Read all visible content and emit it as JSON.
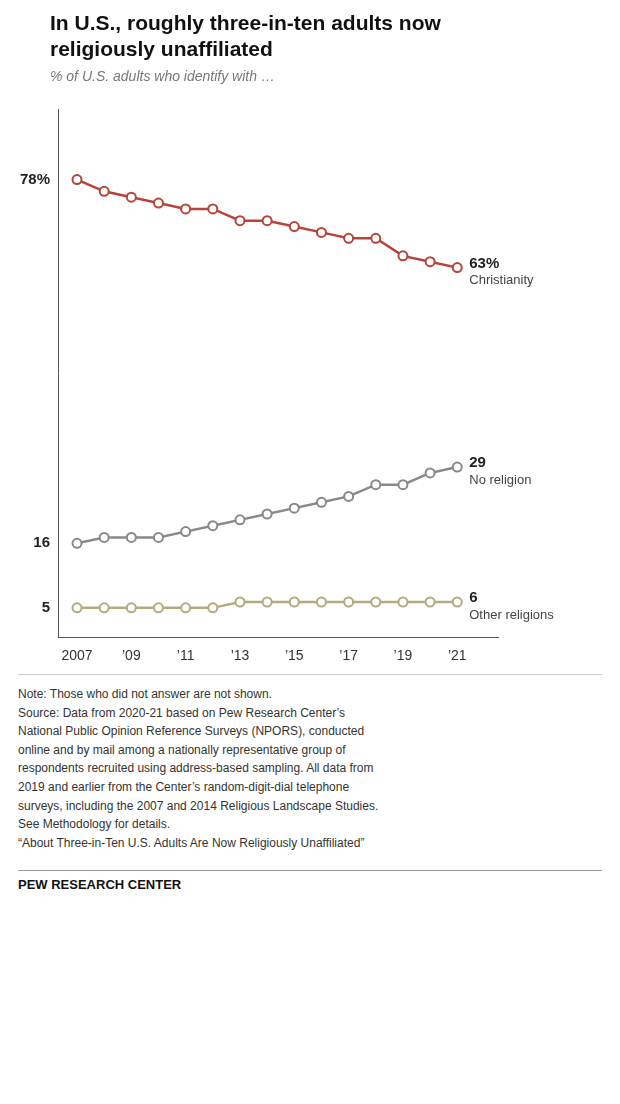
{
  "chart_data": {
    "type": "line",
    "title": [
      "In U.S., roughly three-in-ten adults now",
      "religiously unaffiliated"
    ],
    "subtitle": "% of U.S. adults who identify with …",
    "x": [
      2007,
      2008,
      2009,
      2010,
      2011,
      2012,
      2013,
      2014,
      2015,
      2016,
      2017,
      2018,
      2019,
      2020,
      2021
    ],
    "series": [
      {
        "name": "Christianity",
        "color": "#b5443a",
        "values": [
          78,
          76,
          75,
          74,
          73,
          73,
          71,
          71,
          70,
          69,
          68,
          68,
          65,
          64,
          63
        ],
        "value_labels": [
          "78%",
          null,
          null,
          null,
          null,
          null,
          null,
          null,
          null,
          null,
          null,
          null,
          null,
          null,
          "63%"
        ]
      },
      {
        "name": "No religion",
        "color": "#898989",
        "values": [
          16,
          17,
          17,
          17,
          18,
          19,
          20,
          21,
          22,
          23,
          24,
          26,
          26,
          28,
          29
        ],
        "value_labels": [
          "16",
          null,
          null,
          null,
          null,
          null,
          null,
          null,
          null,
          null,
          null,
          null,
          null,
          null,
          "29"
        ]
      },
      {
        "name": "Other religions",
        "color": "#b5a97e",
        "values": [
          5,
          5,
          5,
          5,
          5,
          5,
          6,
          6,
          6,
          6,
          6,
          6,
          6,
          6,
          6
        ],
        "value_labels": [
          "5",
          null,
          null,
          null,
          null,
          null,
          null,
          null,
          null,
          null,
          null,
          null,
          null,
          null,
          "6"
        ]
      }
    ],
    "xlim": [
      2006.3,
      2022.5
    ],
    "xticks": [
      2007,
      {
        "value": 2009,
        "label": "’09"
      },
      {
        "value": 2011,
        "label": "’11"
      },
      {
        "value": 2013,
        "label": "’13"
      },
      {
        "value": 2015,
        "label": "’15"
      },
      {
        "value": 2017,
        "label": "’17"
      },
      {
        "value": 2019,
        "label": "’19"
      },
      {
        "value": 2021,
        "label": "’21"
      }
    ],
    "ylim": [
      0,
      90
    ],
    "tick_labels": "x",
    "grid": false,
    "marker": "circle",
    "data_labels": true,
    "note": "Note: Those who did not answer are not shown.\nSource: Data from 2020-21 based on Pew Research Center’s\nNational Public Opinion Reference Surveys (NPORS), conducted\nonline and by mail among a nationally representative group of\nrespondents recruited using address-based sampling. All data from\n2019 and earlier from the Center’s random-digit-dial telephone\nsurveys, including the 2007 and 2014 Religious Landscape Studies.\nSee Methodology for details.\n“About Three-in-Ten U.S. Adults Are Now Religiously Unaffiliated”",
    "source": "PEW RESEARCH CENTER"
  }
}
